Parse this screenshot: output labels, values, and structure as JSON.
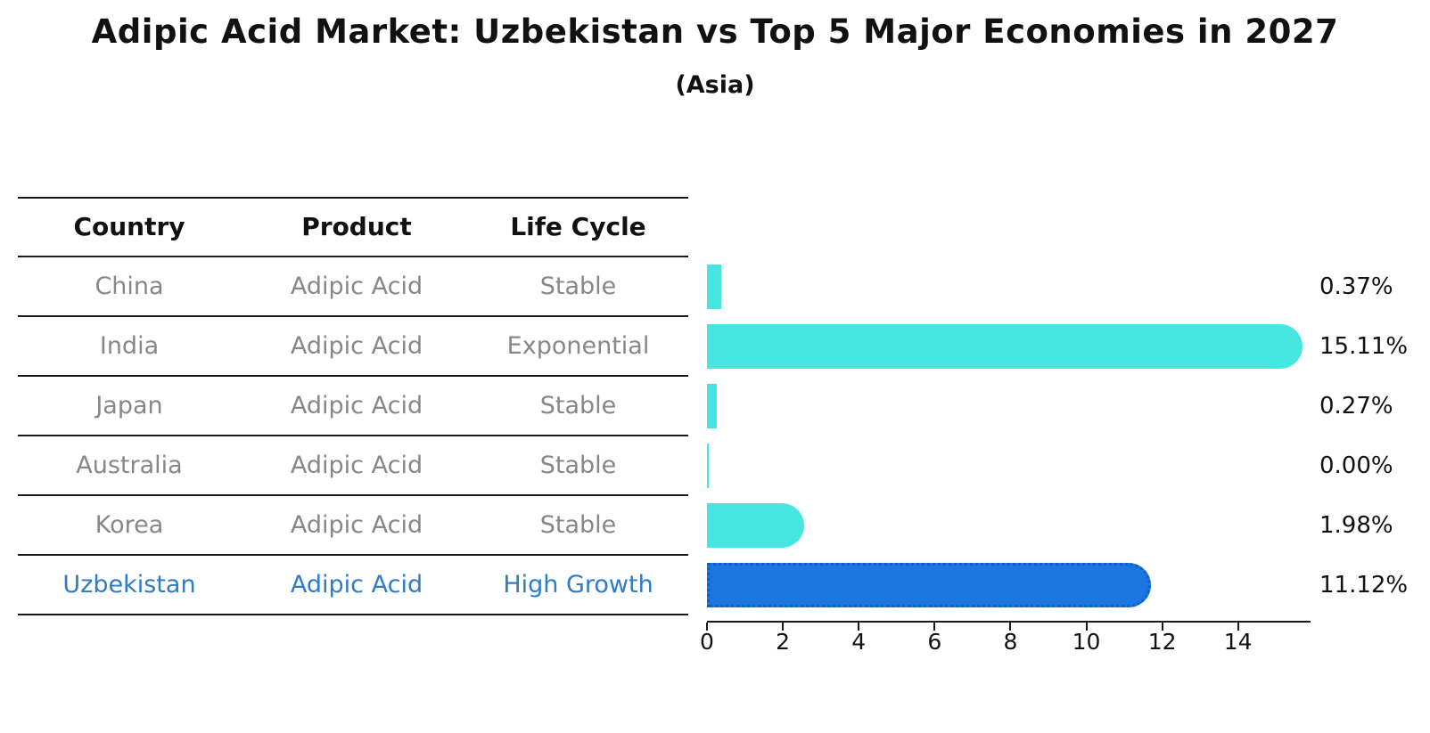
{
  "title": "Adipic Acid Market: Uzbekistan vs Top 5 Major Economies in 2027",
  "subtitle": "(Asia)",
  "table": {
    "headers": [
      "Country",
      "Product",
      "Life Cycle"
    ],
    "rows": [
      {
        "country": "China",
        "product": "Adipic Acid",
        "life_cycle": "Stable",
        "highlight": false
      },
      {
        "country": "India",
        "product": "Adipic Acid",
        "life_cycle": "Exponential",
        "highlight": false
      },
      {
        "country": "Japan",
        "product": "Adipic Acid",
        "life_cycle": "Stable",
        "highlight": false
      },
      {
        "country": "Australia",
        "product": "Adipic Acid",
        "life_cycle": "Stable",
        "highlight": false
      },
      {
        "country": "Korea",
        "product": "Adipic Acid",
        "life_cycle": "Stable",
        "highlight": false
      },
      {
        "country": "Uzbekistan",
        "product": "Adipic Acid",
        "life_cycle": "High Growth",
        "highlight": true
      }
    ]
  },
  "chart_data": {
    "type": "bar",
    "orientation": "horizontal",
    "categories": [
      "China",
      "India",
      "Japan",
      "Australia",
      "Korea",
      "Uzbekistan"
    ],
    "values": [
      0.37,
      15.11,
      0.27,
      0.0,
      1.98,
      11.12
    ],
    "value_labels": [
      "0.37%",
      "15.11%",
      "0.27%",
      "0.00%",
      "1.98%",
      "11.12%"
    ],
    "highlight_index": 5,
    "xlim": [
      0,
      15.9
    ],
    "xticks": [
      0,
      2,
      4,
      6,
      8,
      10,
      12,
      14
    ],
    "grid": false,
    "legend": false
  },
  "colors": {
    "bar_default": "#48e6e0",
    "bar_highlight": "#1c76e2",
    "bar_highlight_border": "#0f5fc4",
    "highlight_text": "#2e7bc9",
    "text_muted": "#878787",
    "text_main": "#111111"
  }
}
